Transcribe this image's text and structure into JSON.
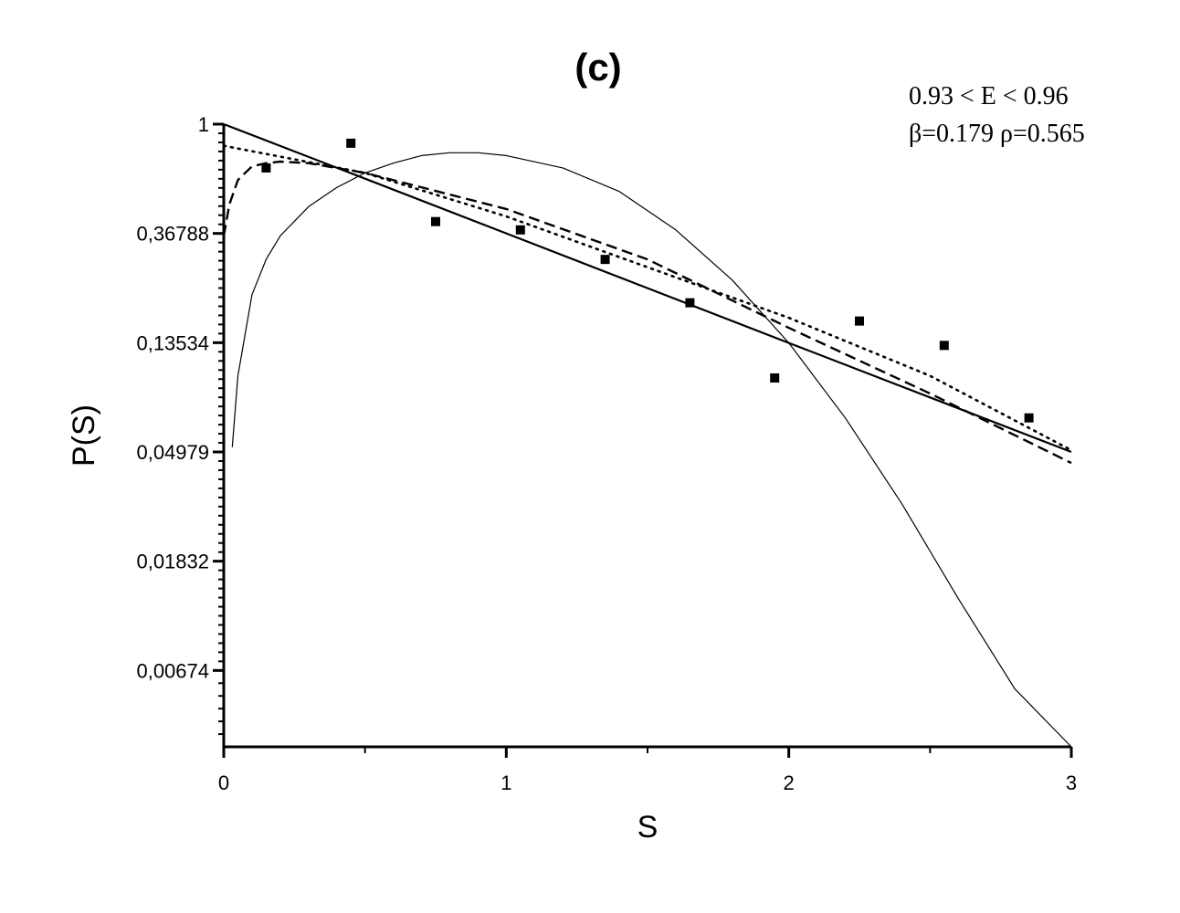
{
  "chart_data": {
    "type": "scatter",
    "title": "(c)",
    "xlabel": "S",
    "ylabel": "P(S)",
    "xlim": [
      0,
      3
    ],
    "ylim_log": [
      0.00335,
      1
    ],
    "y_scale": "log",
    "x_ticks": [
      0,
      1,
      2,
      3
    ],
    "x_tick_labels": [
      "0",
      "1",
      "2",
      "3"
    ],
    "y_ticks": [
      1,
      0.36788,
      0.13534,
      0.04979,
      0.01832,
      0.00674
    ],
    "y_tick_labels": [
      "1",
      "0,36788",
      "0,13534",
      "0,04979",
      "0,01832",
      "0,00674"
    ],
    "annotations": [
      "0.93 < E < 0.96",
      "β=0.179 ρ=0.565"
    ],
    "grid": false,
    "series": [
      {
        "style": "markers",
        "x": [
          0.15,
          0.45,
          0.75,
          1.05,
          1.35,
          1.65,
          1.95,
          2.25,
          2.55,
          2.85
        ],
        "y": [
          0.67,
          0.84,
          0.41,
          0.38,
          0.29,
          0.195,
          0.098,
          0.165,
          0.132,
          0.068
        ]
      },
      {
        "style": "solid",
        "x": [
          0,
          0.5,
          1,
          1.5,
          2,
          2.5,
          3
        ],
        "y": [
          1,
          0.607,
          0.368,
          0.223,
          0.135,
          0.082,
          0.0498
        ]
      },
      {
        "style": "solid-thin",
        "x": [
          0.03,
          0.05,
          0.1,
          0.15,
          0.2,
          0.3,
          0.4,
          0.5,
          0.6,
          0.7,
          0.8,
          0.9,
          1.0,
          1.2,
          1.4,
          1.6,
          1.8,
          2.0,
          2.2,
          2.4,
          2.6,
          2.8,
          3.0
        ],
        "y": [
          0.052,
          0.1,
          0.21,
          0.29,
          0.36,
          0.47,
          0.56,
          0.64,
          0.7,
          0.75,
          0.77,
          0.77,
          0.75,
          0.67,
          0.54,
          0.38,
          0.24,
          0.135,
          0.068,
          0.031,
          0.013,
          0.0057,
          0.00335
        ]
      },
      {
        "style": "dashed",
        "x": [
          0,
          0.02,
          0.05,
          0.1,
          0.15,
          0.2,
          0.3,
          0.5,
          1.0,
          1.5,
          2.0,
          2.5,
          3.0
        ],
        "y": [
          0.36,
          0.48,
          0.6,
          0.68,
          0.7,
          0.71,
          0.7,
          0.64,
          0.46,
          0.29,
          0.155,
          0.085,
          0.045
        ]
      },
      {
        "style": "dotted",
        "x": [
          0,
          0.5,
          1.0,
          1.5,
          2.0,
          2.5,
          3.0
        ],
        "y": [
          0.82,
          0.64,
          0.43,
          0.27,
          0.17,
          0.1,
          0.0506
        ]
      }
    ]
  }
}
